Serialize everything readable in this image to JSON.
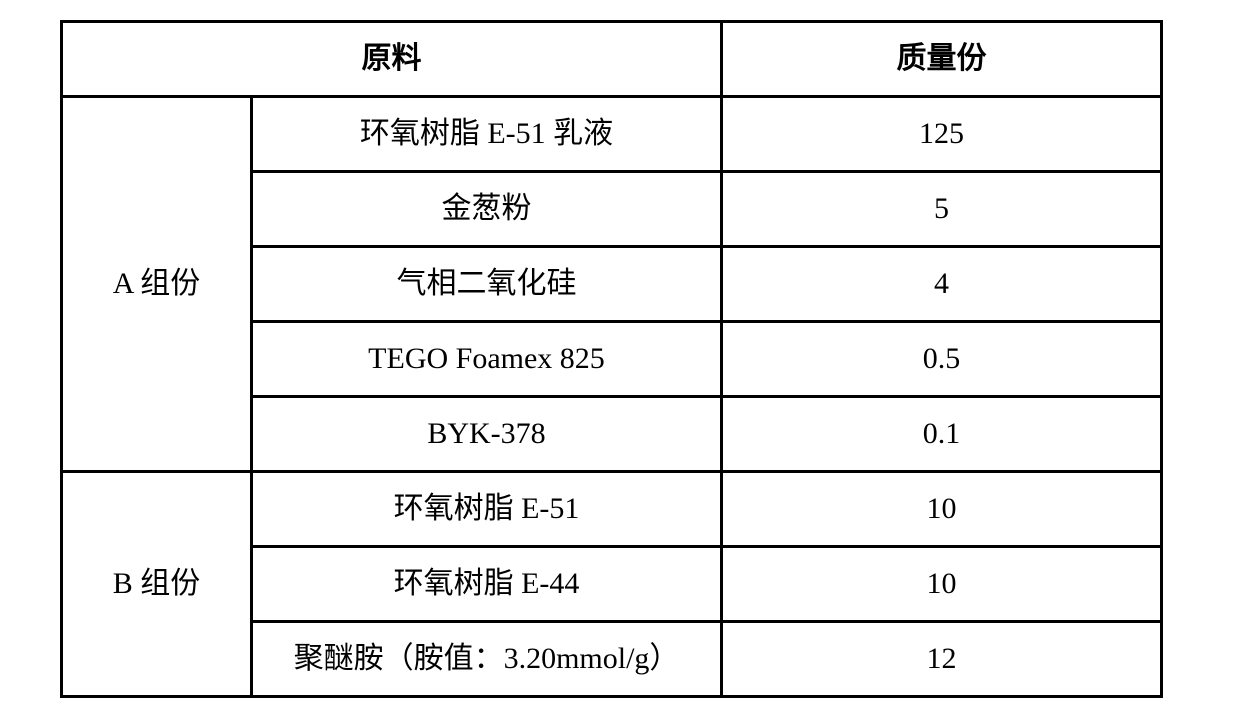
{
  "table": {
    "border_color": "#000000",
    "background_color": "#ffffff",
    "text_color": "#000000",
    "header_fontsize": 30,
    "cell_fontsize": 30,
    "header_bold": true,
    "columns": {
      "raw_material": "原料",
      "mass_parts": "质量份"
    },
    "groups": [
      {
        "label": "A 组份",
        "rows": [
          {
            "material": "环氧树脂 E-51 乳液",
            "qty": "125"
          },
          {
            "material": "金葱粉",
            "qty": "5"
          },
          {
            "material": "气相二氧化硅",
            "qty": "4"
          },
          {
            "material": "TEGO Foamex 825",
            "qty": "0.5"
          },
          {
            "material": "BYK-378",
            "qty": "0.1"
          }
        ]
      },
      {
        "label": "B 组份",
        "rows": [
          {
            "material": "环氧树脂 E-51",
            "qty": "10"
          },
          {
            "material": "环氧树脂 E-44",
            "qty": "10"
          },
          {
            "material": "聚醚胺（胺值：3.20mmol/g）",
            "qty": "12"
          }
        ]
      }
    ]
  }
}
